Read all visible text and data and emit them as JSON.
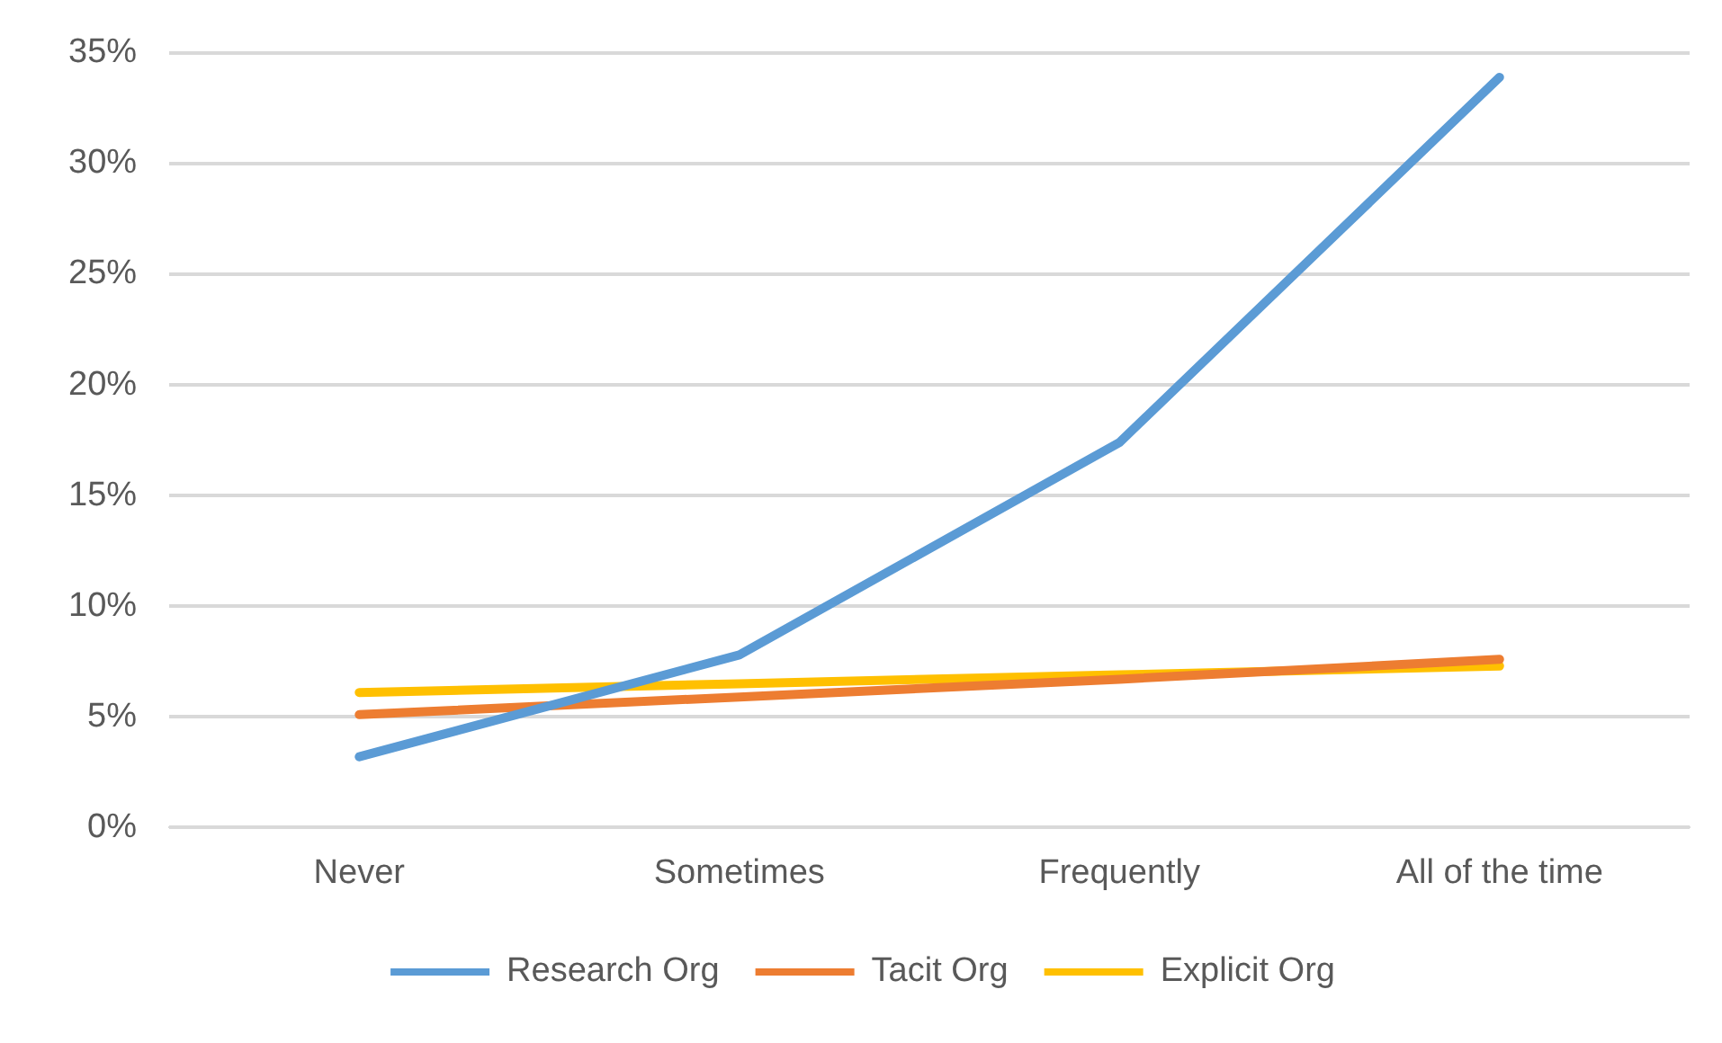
{
  "chart_data": {
    "type": "line",
    "categories": [
      "Never",
      "Sometimes",
      "Frequently",
      "All of the time"
    ],
    "series": [
      {
        "name": "Research Org",
        "color": "#5b9bd5",
        "values": [
          3.2,
          7.8,
          17.4,
          33.9
        ]
      },
      {
        "name": "Tacit Org",
        "color": "#ed7d31",
        "values": [
          5.1,
          5.9,
          6.7,
          7.6
        ]
      },
      {
        "name": "Explicit Org",
        "color": "#ffc000",
        "values": [
          6.1,
          6.5,
          6.9,
          7.3
        ]
      }
    ],
    "ylim": [
      0,
      35
    ],
    "yticks": [
      {
        "value": 0,
        "label": "0%"
      },
      {
        "value": 5,
        "label": "5%"
      },
      {
        "value": 10,
        "label": "10%"
      },
      {
        "value": 15,
        "label": "15%"
      },
      {
        "value": 20,
        "label": "20%"
      },
      {
        "value": 25,
        "label": "25%"
      },
      {
        "value": 30,
        "label": "30%"
      },
      {
        "value": 35,
        "label": "35%"
      }
    ],
    "grid": "y",
    "legend": "bottom",
    "marker": "none",
    "line_style": "solid"
  }
}
